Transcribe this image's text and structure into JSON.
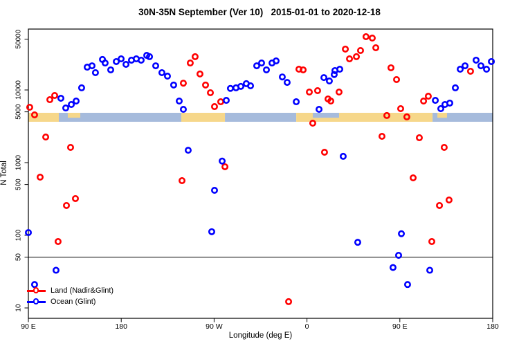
{
  "title": "30N-35N September (Ver 10)   2015-01-01 to 2020-12-18",
  "chart_data": {
    "type": "scatter",
    "title": "30N-35N September (Ver 10)   2015-01-01 to 2020-12-18",
    "xlabel": "Longitude (deg E)",
    "ylabel": "N Total",
    "x_axis": {
      "note": "longitude axis wraps eastward: 90E -> 180 -> 90W -> 0 -> 90E -> 180 (450 deg total, stored as unwrapped 90..540)",
      "range_unwrapped_deg": [
        90,
        540
      ],
      "ticks_unwrapped_deg": [
        90,
        180,
        270,
        360,
        450,
        540
      ],
      "tick_labels": [
        "90 E",
        "180",
        "90 W",
        "0",
        "90 E",
        "180"
      ]
    },
    "y_axis": {
      "scale": "log10",
      "range": [
        6.3,
        73000
      ],
      "ticks": [
        10,
        50,
        100,
        500,
        1000,
        5000,
        10000,
        50000
      ],
      "tick_labels": [
        "10",
        "50",
        "100",
        "500",
        "1000",
        "5000",
        "10000",
        "50000"
      ]
    },
    "reference_line_y": 50,
    "grid": "off",
    "coastline_band": {
      "description": "land/ocean strip drawn across the plot just below N=5000",
      "value_top": 4850,
      "value_bottom": 3650,
      "land_color": "#F6D78A",
      "ocean_color": "#A6BBDC",
      "segments": [
        {
          "type": "land",
          "from_deg": 90,
          "to_deg": 119.5
        },
        {
          "type": "ocean",
          "from_deg": 119.5,
          "to_deg": 238.2
        },
        {
          "type": "land",
          "from_deg": 238.2,
          "to_deg": 280.5
        },
        {
          "type": "ocean",
          "from_deg": 280.5,
          "to_deg": 349.6
        },
        {
          "type": "land",
          "from_deg": 349.6,
          "to_deg": 481.7
        },
        {
          "type": "ocean",
          "from_deg": 481.7,
          "to_deg": 540
        }
      ],
      "top_half_patches": [
        {
          "type": "land",
          "from_deg": 128.2,
          "to_deg": 140.3
        },
        {
          "type": "ocean",
          "from_deg": 365.6,
          "to_deg": 391.1
        },
        {
          "type": "land",
          "from_deg": 486.4,
          "to_deg": 495.7
        }
      ]
    },
    "legend": {
      "position": "bottom-left",
      "entries": [
        {
          "label": "Land (Nadir&Glint)",
          "color": "#FF0000"
        },
        {
          "label": "Ocean (Glint)",
          "color": "#0000FF"
        }
      ]
    },
    "series": [
      {
        "name": "Land (Nadir&Glint)",
        "color": "#FF0000",
        "marker": "open-circle",
        "points": [
          [
            91.3,
            5780
          ],
          [
            96,
            4540
          ],
          [
            110.8,
            7350
          ],
          [
            115.5,
            8390
          ],
          [
            240.2,
            12400
          ],
          [
            246.9,
            23500
          ],
          [
            251.6,
            28700
          ],
          [
            256.3,
            16600
          ],
          [
            261.7,
            11700
          ],
          [
            266.4,
            9160
          ],
          [
            270.4,
            5900
          ],
          [
            276.4,
            6880
          ],
          [
            352.2,
            19300
          ],
          [
            356.3,
            18900
          ],
          [
            362.3,
            9360
          ],
          [
            370.3,
            9780
          ],
          [
            380.4,
            7520
          ],
          [
            383.1,
            7040
          ],
          [
            391.1,
            9360
          ],
          [
            397.2,
            36500
          ],
          [
            401.2,
            26800
          ],
          [
            407.9,
            28700
          ],
          [
            411.9,
            34900
          ],
          [
            417.2,
            54100
          ],
          [
            423.3,
            51800
          ],
          [
            426.7,
            38100
          ],
          [
            441.4,
            20200
          ],
          [
            446.8,
            13900
          ],
          [
            437.4,
            4450
          ],
          [
            450.8,
            5530
          ],
          [
            456.8,
            4260
          ],
          [
            473,
            7040
          ],
          [
            477.6,
            8200
          ],
          [
            518.5,
            18100
          ],
          [
            365.6,
            3490
          ],
          [
            106.8,
            2250
          ],
          [
            130.9,
            1620
          ],
          [
            101.4,
            631
          ],
          [
            135.6,
            320
          ],
          [
            126.9,
            257
          ],
          [
            118.8,
            82
          ],
          [
            280.5,
            877
          ],
          [
            238.9,
            565
          ],
          [
            432.7,
            2300
          ],
          [
            468.9,
            2200
          ],
          [
            493,
            1620
          ],
          [
            377,
            1390
          ],
          [
            462.9,
            617
          ],
          [
            488.4,
            257
          ],
          [
            497.7,
            306
          ],
          [
            481,
            82
          ],
          [
            342.2,
            12.2
          ]
        ]
      },
      {
        "name": "Ocean (Glint)",
        "color": "#0000FF",
        "marker": "open-circle",
        "points": [
          [
            90,
            109
          ],
          [
            121.5,
            7690
          ],
          [
            126.2,
            5650
          ],
          [
            131.6,
            6310
          ],
          [
            136.3,
            7040
          ],
          [
            141.6,
            10700
          ],
          [
            147,
            20600
          ],
          [
            151.7,
            21500
          ],
          [
            155,
            17300
          ],
          [
            161.8,
            26300
          ],
          [
            164.4,
            23500
          ],
          [
            169.8,
            18900
          ],
          [
            175.2,
            24600
          ],
          [
            179.9,
            26800
          ],
          [
            184.6,
            22500
          ],
          [
            189.9,
            25700
          ],
          [
            194.6,
            26800
          ],
          [
            199.3,
            25700
          ],
          [
            204.7,
            29900
          ],
          [
            207.4,
            28700
          ],
          [
            213.4,
            21500
          ],
          [
            219.4,
            17300
          ],
          [
            224.8,
            15500
          ],
          [
            230.8,
            11700
          ],
          [
            236.2,
            7040
          ],
          [
            240.2,
            5410
          ],
          [
            281.8,
            7190
          ],
          [
            285.8,
            10500
          ],
          [
            291.2,
            10700
          ],
          [
            295.9,
            11200
          ],
          [
            301.2,
            12200
          ],
          [
            305.3,
            11400
          ],
          [
            311.3,
            21500
          ],
          [
            316,
            23500
          ],
          [
            320.7,
            18900
          ],
          [
            326.1,
            23500
          ],
          [
            330.1,
            25100
          ],
          [
            336.1,
            15100
          ],
          [
            340.8,
            12700
          ],
          [
            349.6,
            6880
          ],
          [
            371.7,
            5410
          ],
          [
            376.4,
            14800
          ],
          [
            381.7,
            13300
          ],
          [
            386.4,
            16300
          ],
          [
            387.1,
            18500
          ],
          [
            391.8,
            19300
          ],
          [
            395.1,
            1220
          ],
          [
            409.2,
            80
          ],
          [
            451.5,
            105
          ],
          [
            448.8,
            53
          ],
          [
            443.4,
            36
          ],
          [
            479,
            33
          ],
          [
            457.5,
            21
          ],
          [
            484.4,
            7190
          ],
          [
            489.7,
            5530
          ],
          [
            493.7,
            6310
          ],
          [
            498.4,
            6600
          ],
          [
            503.8,
            10700
          ],
          [
            508.5,
            19300
          ],
          [
            513.2,
            21500
          ],
          [
            523.9,
            25700
          ],
          [
            528.6,
            21500
          ],
          [
            534,
            19300
          ],
          [
            538.7,
            24600
          ],
          [
            244.9,
            1480
          ],
          [
            277.8,
            1050
          ],
          [
            270.4,
            416
          ],
          [
            267.7,
            112
          ],
          [
            116.8,
            33
          ],
          [
            96,
            21
          ]
        ]
      }
    ]
  }
}
